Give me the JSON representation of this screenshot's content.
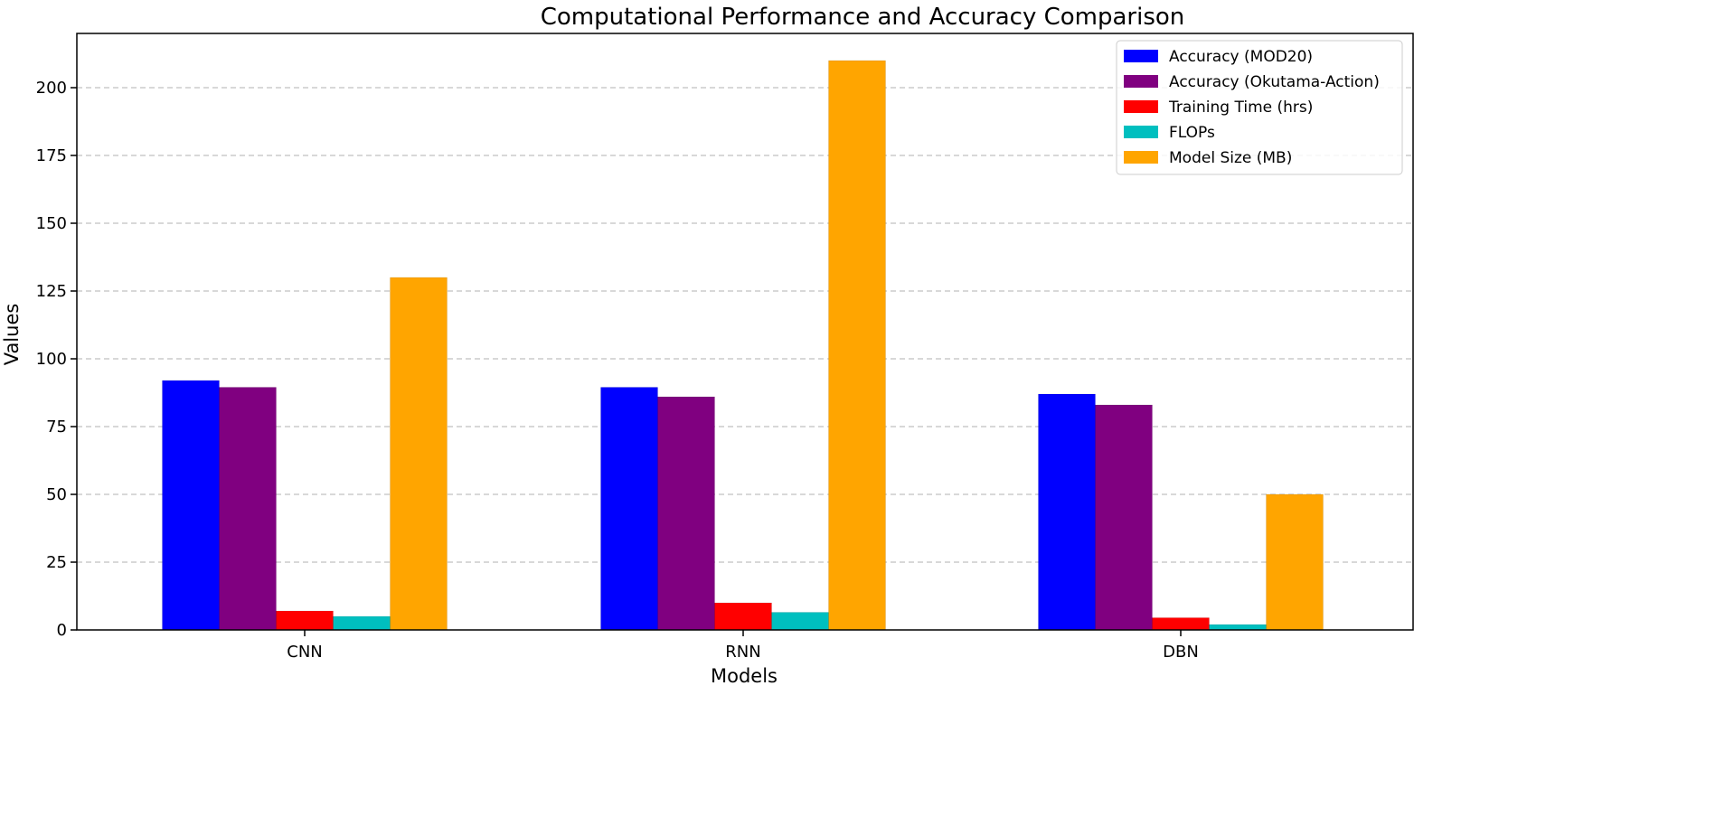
{
  "chart_data": {
    "type": "bar",
    "title": "Computational Performance and Accuracy Comparison",
    "xlabel": "Models",
    "ylabel": "Values",
    "categories": [
      "CNN",
      "RNN",
      "DBN"
    ],
    "ylim": [
      0,
      220
    ],
    "yticks": [
      0,
      25,
      50,
      75,
      100,
      125,
      150,
      175,
      200
    ],
    "grid": "y-dashed",
    "legend_position": "top-right",
    "series": [
      {
        "name": "Accuracy (MOD20)",
        "color": "#0000ff",
        "values": [
          92,
          89.5,
          87
        ]
      },
      {
        "name": "Accuracy (Okutama-Action)",
        "color": "#800080",
        "values": [
          89.5,
          86,
          83
        ]
      },
      {
        "name": "Training Time (hrs)",
        "color": "#ff0000",
        "values": [
          7,
          10,
          4.5
        ]
      },
      {
        "name": "FLOPs",
        "color": "#00bfbf",
        "values": [
          5,
          6.5,
          2
        ]
      },
      {
        "name": "Model Size (MB)",
        "color": "#ffa500",
        "values": [
          130,
          210,
          50
        ]
      }
    ]
  }
}
